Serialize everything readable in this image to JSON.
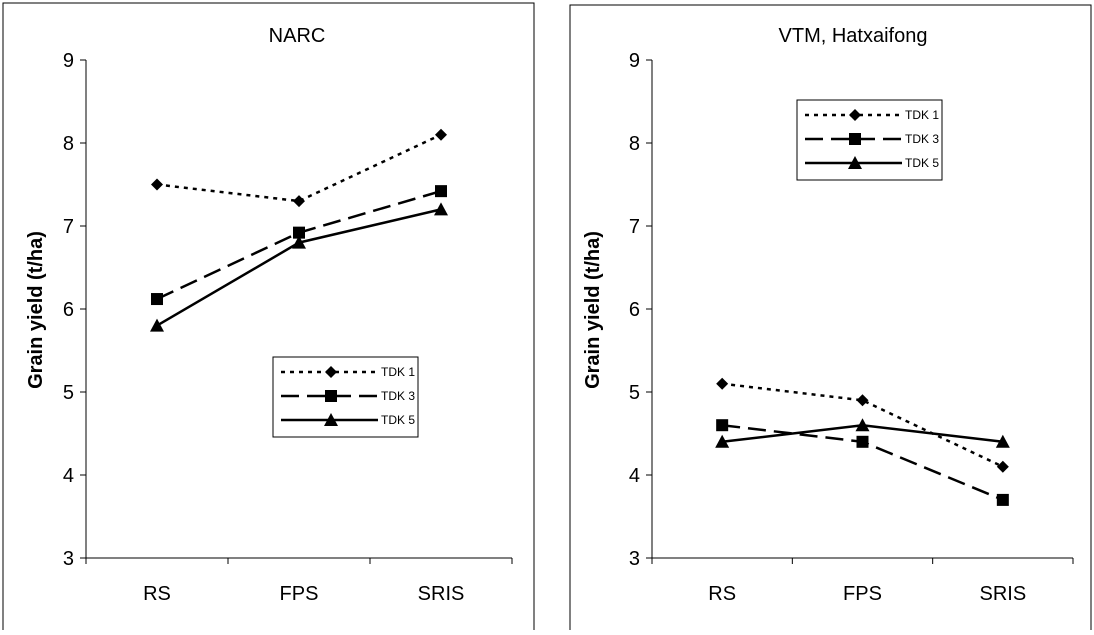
{
  "chart_data": [
    {
      "type": "line",
      "title": "NARC",
      "ylabel": "Grain yield (t/ha)",
      "xlabel": "",
      "categories": [
        "RS",
        "FPS",
        "SRIS"
      ],
      "ylim": [
        3,
        9
      ],
      "yticks": [
        "3",
        "4",
        "5",
        "6",
        "7",
        "8",
        "9"
      ],
      "legend_position": "center-right",
      "grid": false,
      "series": [
        {
          "name": "TDK 1",
          "values": [
            7.5,
            7.3,
            8.1
          ],
          "marker": "diamond",
          "dash": "dotted"
        },
        {
          "name": "TDK 3",
          "values": [
            6.12,
            6.92,
            7.42
          ],
          "marker": "square",
          "dash": "long-dash"
        },
        {
          "name": "TDK 5",
          "values": [
            5.8,
            6.8,
            7.2
          ],
          "marker": "triangle",
          "dash": "solid"
        }
      ]
    },
    {
      "type": "line",
      "title": "VTM, Hatxaifong",
      "ylabel": "Grain yield (t/ha)",
      "xlabel": "",
      "categories": [
        "RS",
        "FPS",
        "SRIS"
      ],
      "ylim": [
        3,
        9
      ],
      "yticks": [
        "3",
        "4",
        "5",
        "6",
        "7",
        "8",
        "9"
      ],
      "legend_position": "top-center",
      "grid": false,
      "series": [
        {
          "name": "TDK 1",
          "values": [
            5.1,
            4.9,
            4.1
          ],
          "marker": "diamond",
          "dash": "dotted"
        },
        {
          "name": "TDK 3",
          "values": [
            4.6,
            4.4,
            3.7
          ],
          "marker": "square",
          "dash": "long-dash"
        },
        {
          "name": "TDK 5",
          "values": [
            4.4,
            4.6,
            4.4
          ],
          "marker": "triangle",
          "dash": "solid"
        }
      ]
    }
  ]
}
